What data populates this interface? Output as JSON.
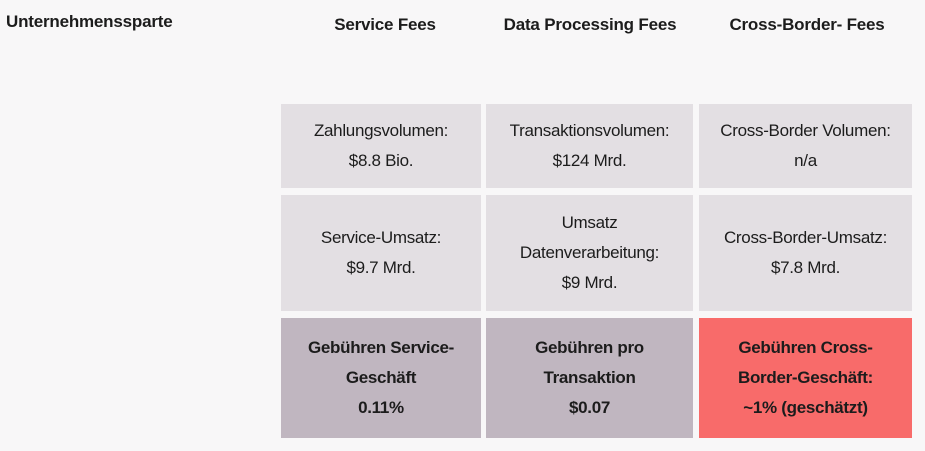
{
  "header": {
    "row_label": "Unternehmenssparte",
    "columns": [
      {
        "lines": [
          "Service Fees"
        ]
      },
      {
        "lines": [
          "Data",
          "Processing",
          "Fees"
        ]
      },
      {
        "lines": [
          "Cross-Border-",
          "Fees"
        ]
      }
    ]
  },
  "rows": [
    {
      "cells": [
        {
          "lines": [
            "Zahlungsvolumen:",
            "$8.8 Bio."
          ]
        },
        {
          "lines": [
            "Transaktionsvolumen:",
            "$124 Mrd."
          ]
        },
        {
          "lines": [
            "Cross-Border Volumen:",
            "n/a"
          ]
        }
      ]
    },
    {
      "cells": [
        {
          "lines": [
            "Service-Umsatz:",
            "$9.7 Mrd."
          ]
        },
        {
          "lines": [
            "Umsatz",
            "Datenverarbeitung:",
            "$9 Mrd."
          ]
        },
        {
          "lines": [
            "Cross-Border-Umsatz:",
            "$7.8 Mrd."
          ]
        }
      ]
    },
    {
      "cells": [
        {
          "lines": [
            "Gebühren Service-",
            "Geschäft",
            "0.11%"
          ]
        },
        {
          "lines": [
            "Gebühren pro",
            "Transaktion",
            "$0.07"
          ]
        },
        {
          "lines": [
            "Gebühren Cross-",
            "Border-Geschäft:",
            "~1% (geschätzt)"
          ]
        }
      ]
    }
  ],
  "colors": {
    "cell_light": "#e3dfe3",
    "cell_dark": "#c0b6c0",
    "cell_highlight": "#f86b6a"
  }
}
